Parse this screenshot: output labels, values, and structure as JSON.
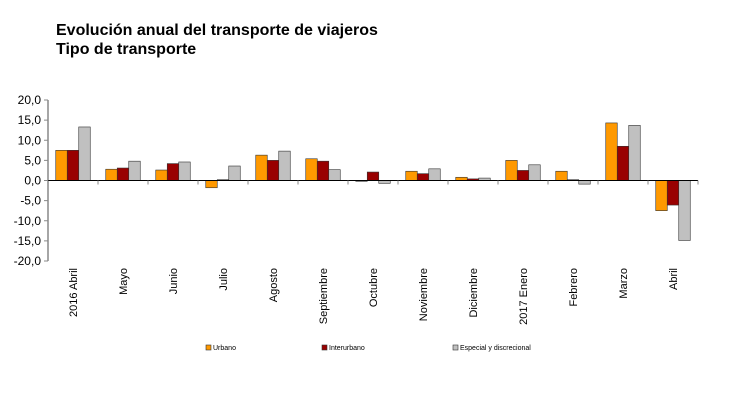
{
  "chart_data": {
    "type": "bar",
    "title": "Evolución anual del transporte de viajeros",
    "subtitle": "Tipo de transporte",
    "xlabel": "",
    "ylabel": "",
    "ylim": [
      -20,
      20
    ],
    "yticks": [
      "20,0",
      "15,0",
      "10,0",
      "5,0",
      "0,0",
      "-5,0",
      "-10,0",
      "-15,0",
      "-20,0"
    ],
    "ytick_values": [
      20,
      15,
      10,
      5,
      0,
      -5,
      -10,
      -15,
      -20
    ],
    "grid": false,
    "legend_position": "bottom",
    "categories": [
      "2016 Abril",
      "Mayo",
      "Junio",
      "Julio",
      "Agosto",
      "Septiembre",
      "Octubre",
      "Noviembre",
      "Diciembre",
      "2017 Enero",
      "Febrero",
      "Marzo",
      "Abril"
    ],
    "series": [
      {
        "name": "Urbano",
        "color": "#FF9900",
        "values": [
          7.5,
          2.8,
          2.6,
          -1.8,
          6.3,
          5.4,
          -0.1,
          2.3,
          0.8,
          5.0,
          2.3,
          14.3,
          -7.5
        ]
      },
      {
        "name": "Interurbano",
        "color": "#990000",
        "values": [
          7.5,
          3.1,
          4.2,
          0.2,
          5.0,
          4.8,
          2.1,
          1.7,
          0.4,
          2.5,
          0.2,
          8.5,
          -6.1
        ]
      },
      {
        "name": "Especial y discrecional",
        "color": "#C0C0C0",
        "values": [
          13.3,
          4.8,
          4.6,
          3.6,
          7.3,
          2.7,
          -0.7,
          2.9,
          0.6,
          3.9,
          -0.9,
          13.7,
          -14.9
        ]
      }
    ]
  }
}
